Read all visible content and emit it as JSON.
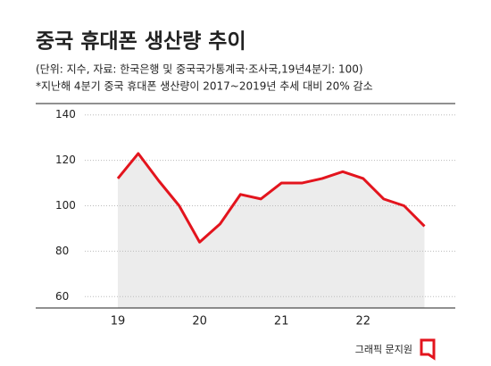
{
  "chart_data": {
    "type": "line",
    "title": "중국 휴대폰 생산량 추이",
    "subtitle": "(단위: 지수, 자료: 한국은행 및 중국국가통계국·조사국,19년4분기: 100)",
    "note": "*지난해 4분기 중국 휴대폰 생산량이 2017~2019년 추세 대비 20% 감소",
    "source": "그래픽 문지원",
    "categories": [
      "19",
      null,
      null,
      null,
      "20",
      null,
      null,
      null,
      "21",
      null,
      null,
      null,
      "22",
      null,
      null,
      null
    ],
    "series": [
      {
        "color": "#e3141d",
        "values": [
          112,
          123,
          111,
          100,
          84,
          92,
          105,
          103,
          110,
          110,
          112,
          115,
          112,
          103,
          100,
          91
        ]
      }
    ],
    "ylim": [
      55,
      145
    ],
    "yticks": [
      60,
      80,
      100,
      120,
      140
    ],
    "grid": true,
    "area_color": "#ececec"
  }
}
